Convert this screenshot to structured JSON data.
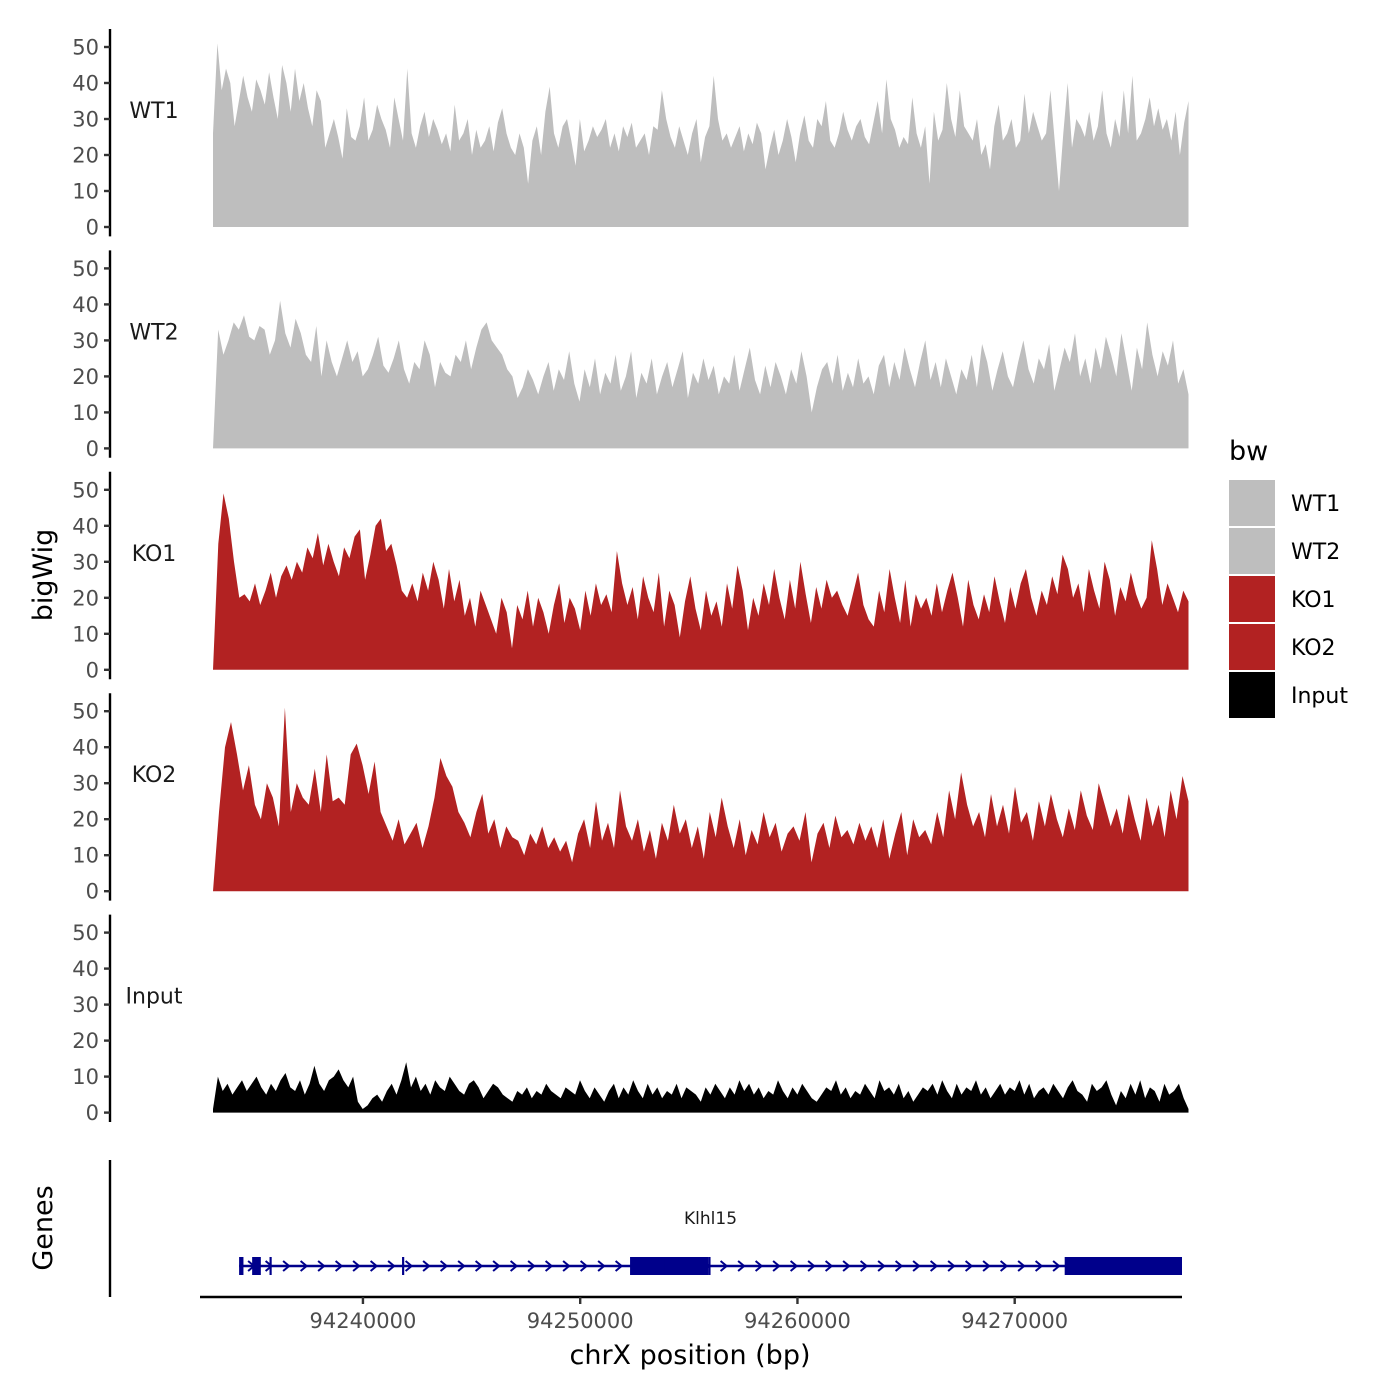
{
  "chart_data": {
    "type": "area",
    "ylabel": "bigWig",
    "xlabel": "chrX position (bp)",
    "ylim": [
      0,
      50
    ],
    "y_ticks": [
      0,
      10,
      20,
      30,
      40,
      50
    ],
    "x_range": [
      94232500,
      94277700
    ],
    "x_ticks": [
      94240000,
      94250000,
      94260000,
      94270000
    ],
    "x_tick_labels": [
      "94240000",
      "94250000",
      "94260000",
      "94270000"
    ],
    "track_start": 94233100,
    "track_end": 94278000,
    "series": [
      {
        "name": "WT1",
        "color": "#bebebe",
        "values": [
          26,
          51,
          38,
          44,
          40,
          28,
          35,
          42,
          36,
          32,
          41,
          38,
          34,
          43,
          36,
          30,
          45,
          40,
          32,
          44,
          35,
          40,
          33,
          28,
          38,
          35,
          22,
          26,
          30,
          25,
          19,
          33,
          25,
          24,
          28,
          36,
          24,
          27,
          34,
          30,
          27,
          22,
          36,
          30,
          24,
          44,
          26,
          22,
          28,
          32,
          25,
          30,
          27,
          23,
          26,
          21,
          34,
          24,
          26,
          30,
          20,
          27,
          22,
          24,
          28,
          21,
          29,
          33,
          26,
          22,
          20,
          26,
          22,
          12,
          24,
          28,
          20,
          32,
          39,
          26,
          22,
          28,
          30,
          24,
          17,
          30,
          21,
          24,
          28,
          25,
          27,
          30,
          22,
          26,
          21,
          28,
          25,
          29,
          22,
          24,
          26,
          20,
          28,
          27,
          38,
          30,
          25,
          22,
          28,
          24,
          20,
          26,
          30,
          18,
          25,
          28,
          42,
          30,
          24,
          26,
          22,
          25,
          28,
          21,
          26,
          23,
          29,
          26,
          16,
          22,
          27,
          20,
          24,
          30,
          25,
          18,
          26,
          31,
          24,
          22,
          30,
          28,
          35,
          24,
          22,
          26,
          32,
          27,
          24,
          28,
          30,
          25,
          23,
          29,
          35,
          26,
          41,
          30,
          27,
          22,
          25,
          23,
          36,
          26,
          22,
          28,
          12,
          32,
          24,
          27,
          40,
          30,
          25,
          38,
          28,
          26,
          24,
          30,
          20,
          23,
          16,
          28,
          34,
          24,
          26,
          30,
          22,
          24,
          37,
          26,
          32,
          28,
          24,
          26,
          38,
          24,
          10,
          26,
          40,
          22,
          30,
          28,
          25,
          32,
          24,
          28,
          38,
          26,
          22,
          30,
          25,
          38,
          26,
          42,
          24,
          26,
          30,
          36,
          28,
          33,
          27,
          30,
          24,
          32,
          20,
          29,
          35
        ]
      },
      {
        "name": "WT2",
        "color": "#bebebe",
        "values": [
          0,
          33,
          26,
          30,
          35,
          33,
          37,
          31,
          30,
          34,
          33,
          26,
          30,
          41,
          32,
          28,
          36,
          32,
          26,
          24,
          34,
          20,
          30,
          24,
          20,
          25,
          30,
          24,
          27,
          20,
          22,
          26,
          31,
          23,
          21,
          25,
          30,
          22,
          18,
          24,
          22,
          30,
          26,
          17,
          24,
          21,
          20,
          26,
          24,
          30,
          22,
          28,
          33,
          35,
          30,
          28,
          26,
          22,
          20,
          14,
          17,
          22,
          19,
          15,
          20,
          24,
          16,
          22,
          19,
          27,
          18,
          13,
          22,
          17,
          25,
          15,
          21,
          18,
          26,
          16,
          20,
          27,
          14,
          21,
          18,
          25,
          15,
          20,
          24,
          17,
          22,
          27,
          14,
          21,
          18,
          25,
          19,
          23,
          15,
          20,
          18,
          26,
          16,
          22,
          28,
          19,
          15,
          23,
          17,
          24,
          20,
          15,
          22,
          18,
          27,
          20,
          10,
          17,
          22,
          24,
          18,
          26,
          16,
          21,
          17,
          25,
          18,
          20,
          15,
          23,
          26,
          17,
          24,
          19,
          28,
          22,
          17,
          24,
          30,
          19,
          24,
          17,
          25,
          20,
          15,
          22,
          19,
          26,
          17,
          29,
          24,
          16,
          22,
          27,
          20,
          17,
          24,
          30,
          22,
          18,
          25,
          22,
          29,
          16,
          22,
          28,
          24,
          32,
          20,
          25,
          18,
          28,
          22,
          31,
          26,
          20,
          32,
          24,
          16,
          28,
          22,
          35,
          26,
          20,
          27,
          23,
          30,
          18,
          22,
          15
        ]
      },
      {
        "name": "KO1",
        "color": "#b22222",
        "values": [
          0,
          35,
          49,
          42,
          30,
          20,
          21,
          19,
          24,
          18,
          22,
          27,
          20,
          26,
          29,
          25,
          30,
          27,
          34,
          31,
          38,
          29,
          35,
          30,
          26,
          34,
          31,
          37,
          39,
          25,
          32,
          40,
          42,
          33,
          35,
          29,
          22,
          20,
          24,
          19,
          27,
          22,
          30,
          25,
          17,
          28,
          19,
          25,
          15,
          20,
          12,
          22,
          18,
          14,
          10,
          20,
          16,
          6,
          18,
          14,
          22,
          12,
          20,
          16,
          10,
          18,
          24,
          13,
          20,
          17,
          11,
          22,
          15,
          24,
          18,
          21,
          16,
          33,
          24,
          18,
          23,
          14,
          26,
          20,
          16,
          27,
          12,
          22,
          18,
          9,
          19,
          26,
          17,
          11,
          22,
          15,
          19,
          12,
          24,
          17,
          29,
          22,
          11,
          20,
          15,
          24,
          18,
          28,
          20,
          14,
          25,
          17,
          30,
          21,
          13,
          23,
          17,
          25,
          20,
          22,
          18,
          15,
          21,
          27,
          18,
          14,
          12,
          22,
          16,
          28,
          20,
          13,
          25,
          12,
          21,
          17,
          20,
          15,
          24,
          16,
          22,
          27,
          20,
          12,
          25,
          18,
          14,
          21,
          16,
          26,
          19,
          13,
          23,
          17,
          24,
          28,
          20,
          15,
          22,
          18,
          26,
          21,
          32,
          28,
          20,
          24,
          16,
          28,
          22,
          17,
          30,
          25,
          15,
          23,
          19,
          27,
          21,
          17,
          20,
          36,
          28,
          18,
          24,
          20,
          16,
          22,
          19
        ]
      },
      {
        "name": "KO2",
        "color": "#b22222",
        "values": [
          0,
          22,
          40,
          47,
          38,
          28,
          35,
          24,
          20,
          30,
          26,
          18,
          51,
          22,
          30,
          26,
          24,
          34,
          22,
          38,
          25,
          26,
          24,
          38,
          41,
          35,
          27,
          36,
          22,
          18,
          14,
          20,
          13,
          16,
          19,
          12,
          18,
          26,
          37,
          32,
          29,
          22,
          19,
          15,
          22,
          27,
          16,
          20,
          12,
          18,
          15,
          14,
          10,
          16,
          13,
          18,
          12,
          15,
          11,
          14,
          8,
          16,
          20,
          12,
          25,
          14,
          19,
          12,
          28,
          18,
          14,
          20,
          11,
          17,
          9,
          19,
          14,
          24,
          16,
          20,
          12,
          18,
          9,
          22,
          15,
          26,
          18,
          12,
          20,
          10,
          17,
          13,
          22,
          15,
          19,
          11,
          16,
          18,
          14,
          22,
          8,
          16,
          19,
          12,
          21,
          15,
          17,
          13,
          19,
          14,
          18,
          12,
          20,
          9,
          16,
          22,
          10,
          20,
          15,
          17,
          13,
          22,
          15,
          28,
          20,
          33,
          24,
          18,
          22,
          15,
          27,
          18,
          24,
          16,
          29,
          19,
          22,
          14,
          25,
          18,
          27,
          20,
          15,
          23,
          17,
          28,
          21,
          17,
          30,
          24,
          18,
          23,
          16,
          27,
          20,
          14,
          26,
          18,
          24,
          15,
          28,
          20,
          32,
          25
        ]
      },
      {
        "name": "Input",
        "color": "#000000",
        "values": [
          1,
          10,
          6,
          8,
          5,
          7,
          9,
          6,
          8,
          10,
          7,
          5,
          8,
          6,
          9,
          11,
          7,
          6,
          9,
          5,
          8,
          13,
          8,
          6,
          9,
          10,
          12,
          9,
          7,
          10,
          3,
          1,
          2,
          4,
          5,
          3,
          6,
          8,
          5,
          9,
          14,
          7,
          10,
          6,
          8,
          5,
          9,
          7,
          6,
          10,
          8,
          6,
          5,
          8,
          9,
          7,
          4,
          6,
          8,
          7,
          5,
          4,
          3,
          6,
          5,
          7,
          4,
          6,
          5,
          8,
          6,
          5,
          4,
          7,
          6,
          5,
          9,
          6,
          4,
          7,
          5,
          3,
          6,
          8,
          4,
          7,
          5,
          9,
          6,
          4,
          8,
          5,
          7,
          4,
          6,
          5,
          8,
          4,
          7,
          6,
          5,
          3,
          7,
          5,
          8,
          6,
          4,
          7,
          5,
          9,
          6,
          8,
          5,
          7,
          4,
          6,
          5,
          9,
          6,
          4,
          7,
          5,
          8,
          6,
          4,
          3,
          5,
          7,
          6,
          9,
          5,
          7,
          4,
          6,
          5,
          8,
          6,
          4,
          9,
          6,
          7,
          5,
          8,
          4,
          6,
          3,
          5,
          7,
          6,
          8,
          5,
          9,
          6,
          4,
          8,
          5,
          7,
          6,
          9,
          5,
          7,
          4,
          6,
          8,
          5,
          7,
          6,
          9,
          5,
          8,
          4,
          6,
          7,
          5,
          8,
          6,
          4,
          7,
          9,
          6,
          5,
          3,
          8,
          6,
          7,
          9,
          5,
          2,
          6,
          4,
          8,
          5,
          9,
          4,
          7,
          6,
          3,
          8,
          5,
          6,
          8,
          4,
          1
        ]
      }
    ],
    "legend": {
      "title": "bw",
      "position": "right",
      "items": [
        {
          "label": "WT1",
          "color": "#bebebe"
        },
        {
          "label": "WT2",
          "color": "#bebebe"
        },
        {
          "label": "KO1",
          "color": "#b22222"
        },
        {
          "label": "KO2",
          "color": "#b22222"
        },
        {
          "label": "Input",
          "color": "#000000"
        }
      ]
    },
    "genes": {
      "ylabel": "Genes",
      "color": "#00008b",
      "items": [
        {
          "name": "Klhl15",
          "strand": "+",
          "start": 94234300,
          "end": 94277700,
          "exons": [
            [
              94234300,
              94234500
            ],
            [
              94234900,
              94235300
            ],
            [
              94235700,
              94235800
            ],
            [
              94241800,
              94241900
            ],
            [
              94252300,
              94255900
            ],
            [
              94272300,
              94277700
            ]
          ],
          "thick_exons": [
            [
              94252300,
              94253900
            ],
            [
              94255900,
              94256000
            ]
          ]
        }
      ]
    }
  }
}
